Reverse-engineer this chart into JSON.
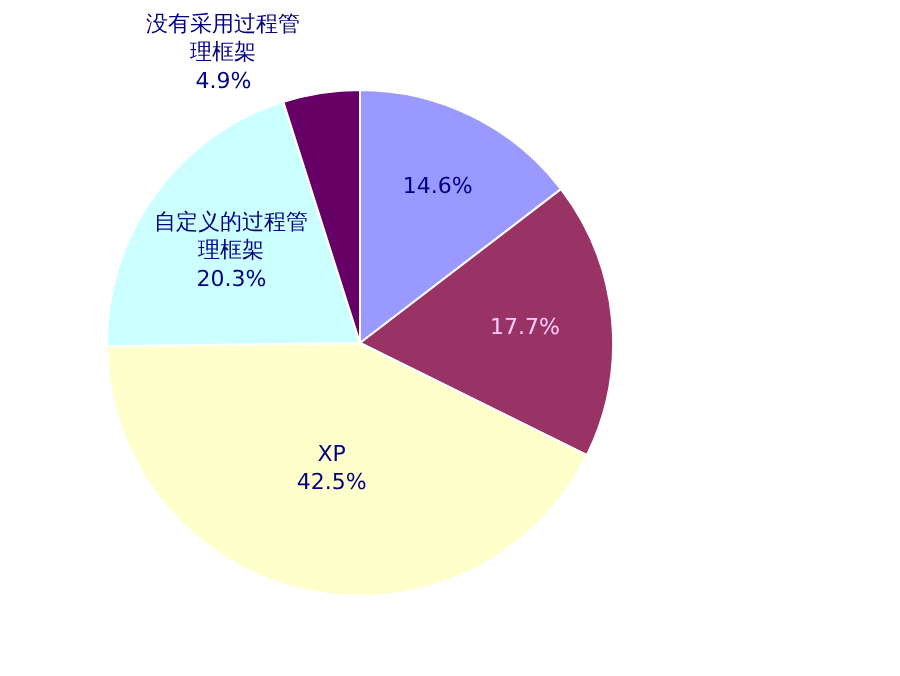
{
  "chart_data": {
    "type": "pie",
    "categories": [
      null,
      null,
      "XP",
      "自定义的过程管理框架",
      "没有采用过程管理框架"
    ],
    "values": [
      14.6,
      17.7,
      42.5,
      20.3,
      4.9
    ],
    "colors": [
      "#9999ff",
      "#993366",
      "#ffffcc",
      "#ccffff",
      "#660066"
    ],
    "value_labels": [
      "14.6%",
      "17.7%",
      "42.5%",
      "20.3%",
      "4.9%"
    ],
    "legend": false
  }
}
